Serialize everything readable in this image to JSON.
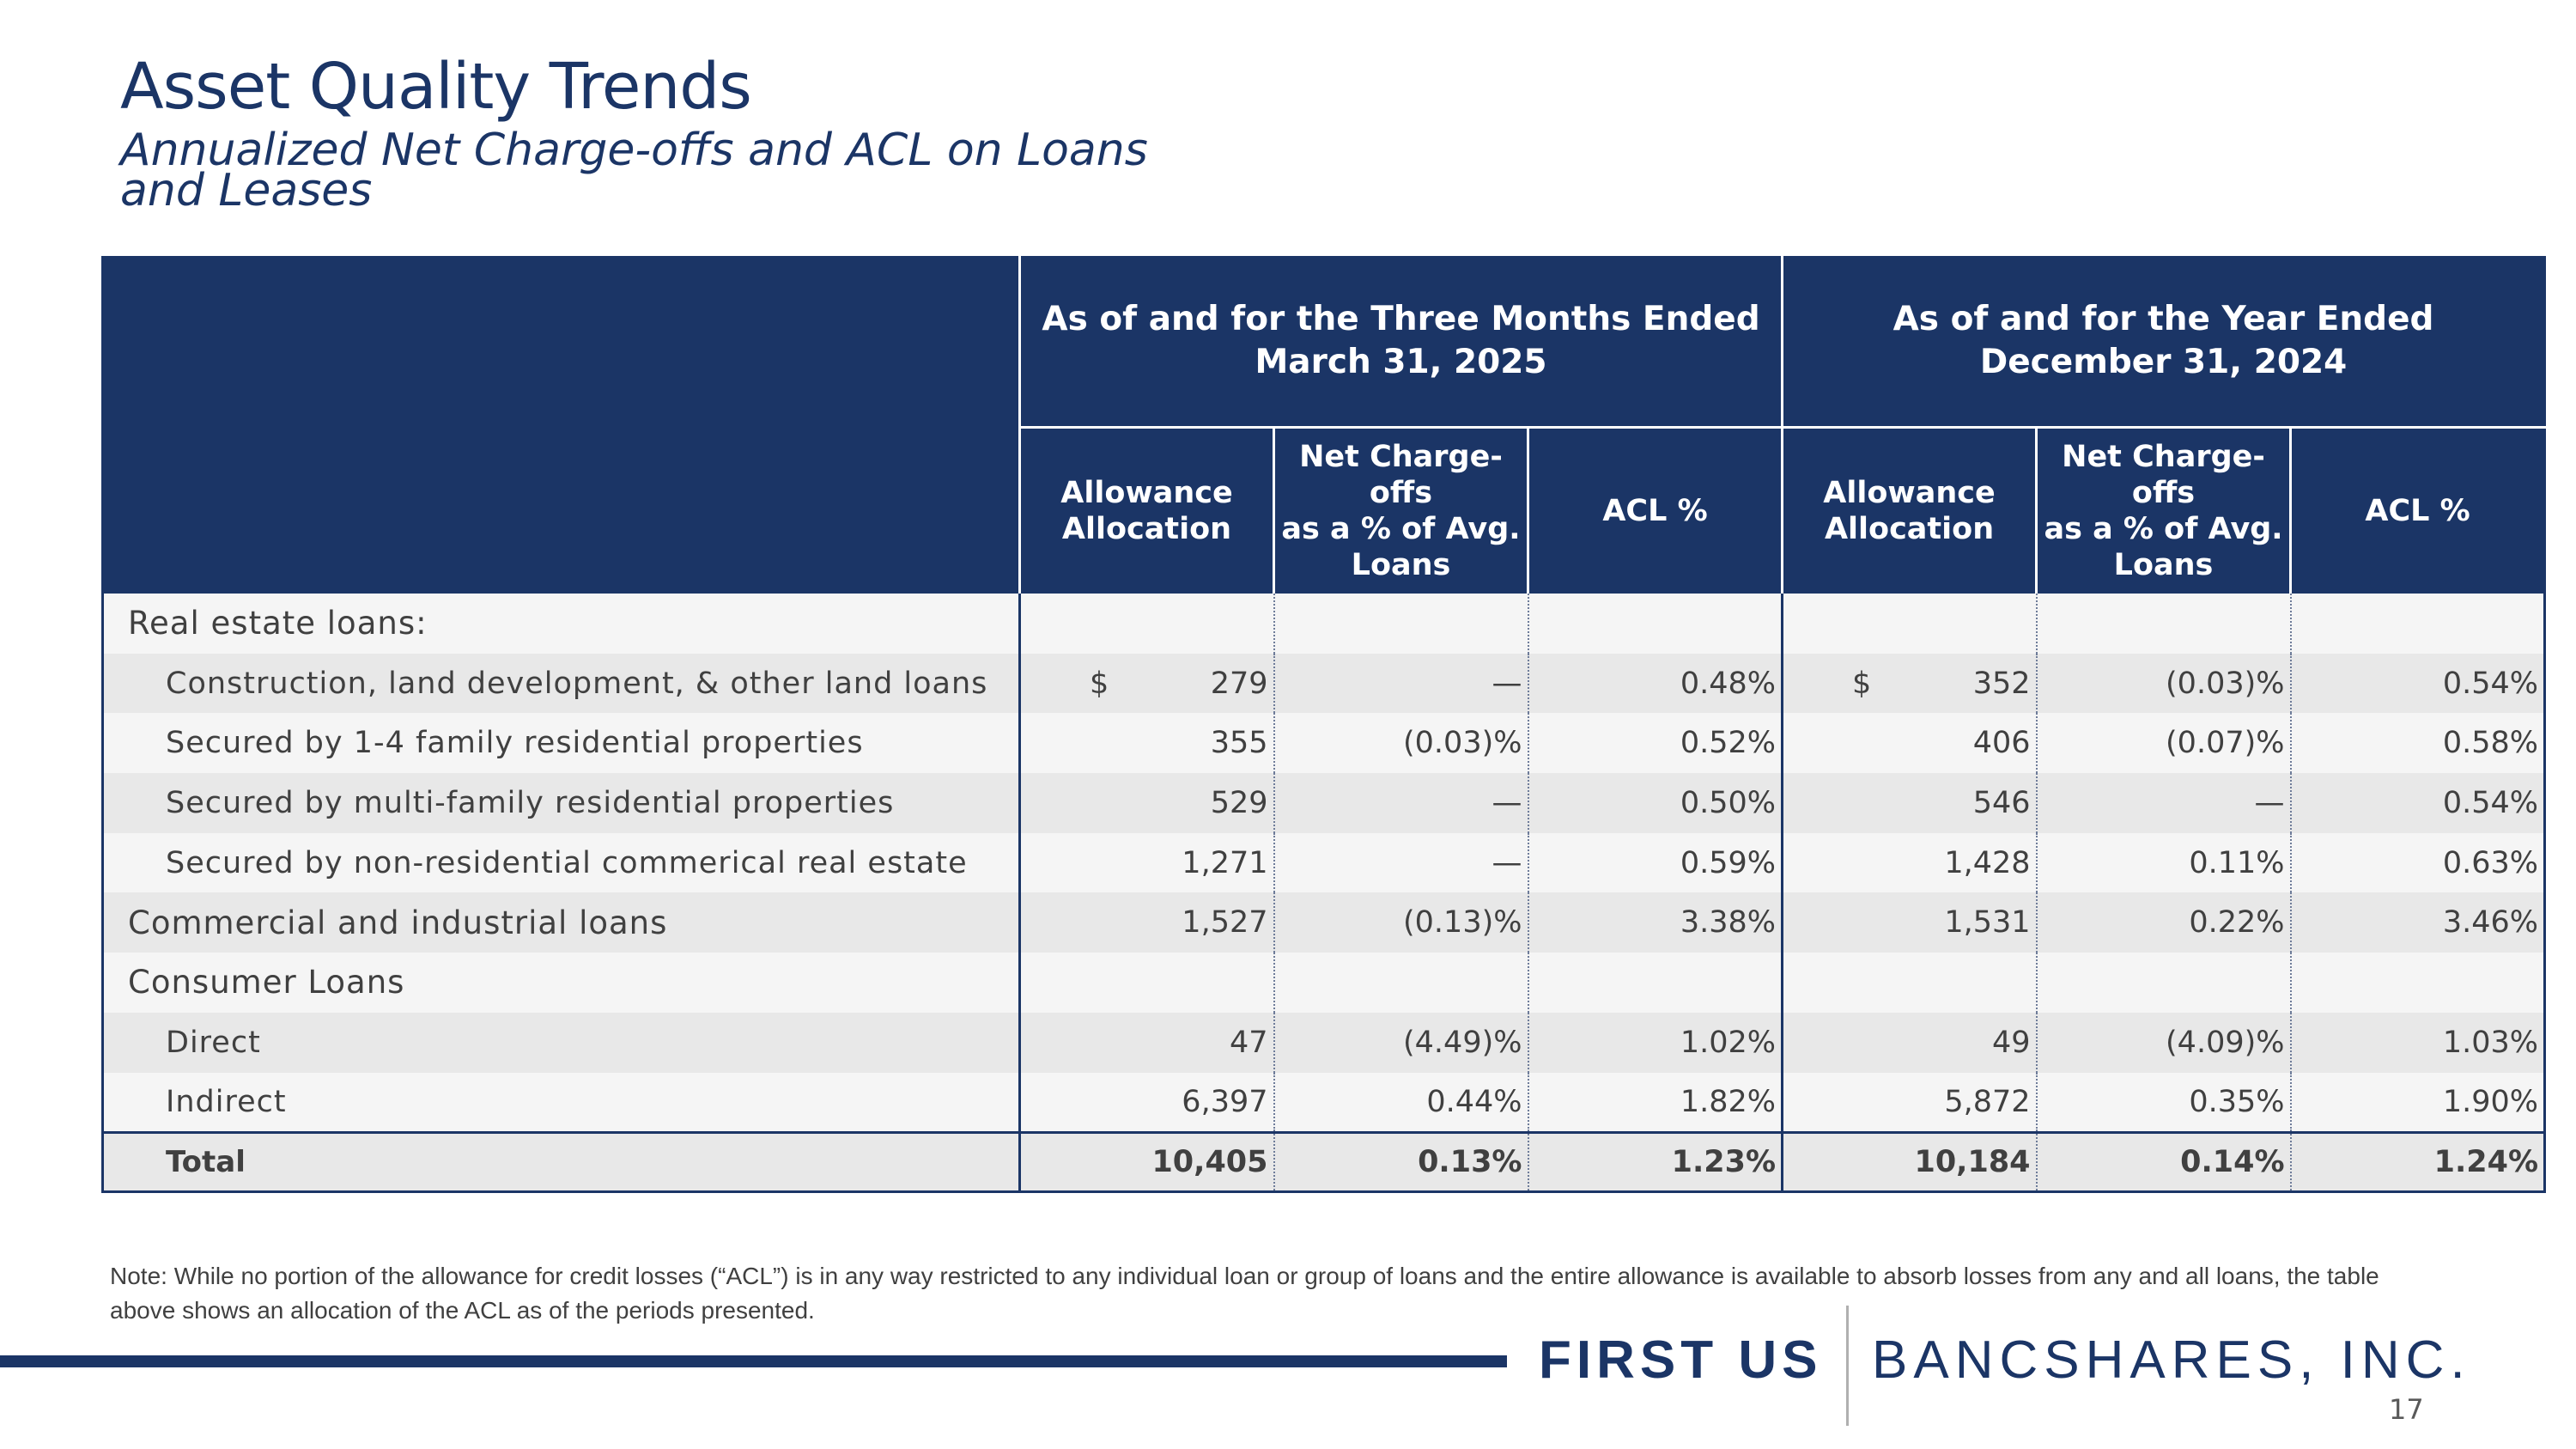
{
  "header": {
    "title": "Asset Quality Trends",
    "subtitle": "Annualized Net Charge-offs and ACL on Loans and Leases"
  },
  "table": {
    "period_1": {
      "line1": "As of and for the Three Months Ended",
      "line2": "March 31, 2025"
    },
    "period_2": {
      "line1": "As of and for the Year Ended",
      "line2": "December 31, 2024"
    },
    "columns": {
      "allowance_1": "Allowance",
      "allowance_2": "Allocation",
      "nco_1": "Net Charge-offs",
      "nco_2": "as a % of Avg.",
      "nco_3": "Loans",
      "acl": "ACL %"
    },
    "currency": "$",
    "rows": [
      {
        "label": "Real estate loans:",
        "cells": [
          "",
          "",
          "",
          "",
          "",
          ""
        ]
      },
      {
        "label": "Construction, land development, & other land loans",
        "cells": [
          "279",
          "—",
          "0.48%",
          "352",
          "(0.03)%",
          "0.54%"
        ]
      },
      {
        "label": "Secured by 1-4 family residential properties",
        "cells": [
          "355",
          "(0.03)%",
          "0.52%",
          "406",
          "(0.07)%",
          "0.58%"
        ]
      },
      {
        "label": "Secured by multi-family residential properties",
        "cells": [
          "529",
          "—",
          "0.50%",
          "546",
          "—",
          "0.54%"
        ]
      },
      {
        "label": "Secured by non-residential commerical real estate",
        "cells": [
          "1,271",
          "—",
          "0.59%",
          "1,428",
          "0.11%",
          "0.63%"
        ]
      },
      {
        "label": "Commercial and industrial loans",
        "cells": [
          "1,527",
          "(0.13)%",
          "3.38%",
          "1,531",
          "0.22%",
          "3.46%"
        ]
      },
      {
        "label": "Consumer Loans",
        "cells": [
          "",
          "",
          "",
          "",
          "",
          ""
        ]
      },
      {
        "label": "Direct",
        "cells": [
          "47",
          "(4.49)%",
          "1.02%",
          "49",
          "(4.09)%",
          "1.03%"
        ]
      },
      {
        "label": "Indirect",
        "cells": [
          "6,397",
          "0.44%",
          "1.82%",
          "5,872",
          "0.35%",
          "1.90%"
        ]
      },
      {
        "label": "Total",
        "cells": [
          "10,405",
          "0.13%",
          "1.23%",
          "10,184",
          "0.14%",
          "1.24%"
        ]
      }
    ]
  },
  "note": "Note: While no portion of the allowance for credit losses (“ACL”) is in any way restricted to any individual loan or group of loans and the entire allowance is available to absorb losses from any and all loans, the table above shows an allocation of the ACL as of the periods presented.",
  "footer": {
    "logo_left": "FIRST US",
    "logo_right": "BANCSHARES, INC.",
    "page_number": "17"
  },
  "colors": {
    "brand_navy": "#1b3566",
    "row_dark": "#e8e8e8",
    "row_light": "#f5f5f5"
  }
}
